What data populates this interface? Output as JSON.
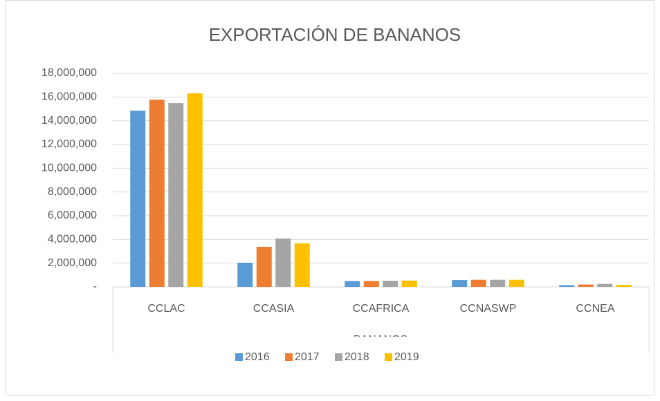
{
  "chart_data": {
    "type": "bar",
    "title": "EXPORTACIÓN DE BANANOS",
    "x_label": "BANANOS",
    "categories": [
      "CCLAC",
      "CCASIA",
      "CCAFRICA",
      "CCNASWP",
      "CCNEA"
    ],
    "series": [
      {
        "name": "2016",
        "color": "#5b9bd5",
        "values": [
          14850000,
          2040000,
          500000,
          580000,
          150000
        ]
      },
      {
        "name": "2017",
        "color": "#ed7d31",
        "values": [
          15780000,
          3380000,
          500000,
          600000,
          200000
        ]
      },
      {
        "name": "2018",
        "color": "#a5a5a5",
        "values": [
          15490000,
          4080000,
          520000,
          600000,
          250000
        ]
      },
      {
        "name": "2019",
        "color": "#ffc000",
        "values": [
          16310000,
          3670000,
          540000,
          600000,
          170000
        ]
      }
    ],
    "ylim": [
      0,
      18000000
    ],
    "yticks": [
      {
        "value": 0,
        "label": "-"
      },
      {
        "value": 2000000,
        "label": "2,000,000"
      },
      {
        "value": 4000000,
        "label": "4,000,000"
      },
      {
        "value": 6000000,
        "label": "6,000,000"
      },
      {
        "value": 8000000,
        "label": "8,000,000"
      },
      {
        "value": 10000000,
        "label": "10,000,000"
      },
      {
        "value": 12000000,
        "label": "12,000,000"
      },
      {
        "value": 14000000,
        "label": "14,000,000"
      },
      {
        "value": 16000000,
        "label": "16,000,000"
      },
      {
        "value": 18000000,
        "label": "18,000,000"
      }
    ],
    "grid": true,
    "legend": "bottom"
  }
}
